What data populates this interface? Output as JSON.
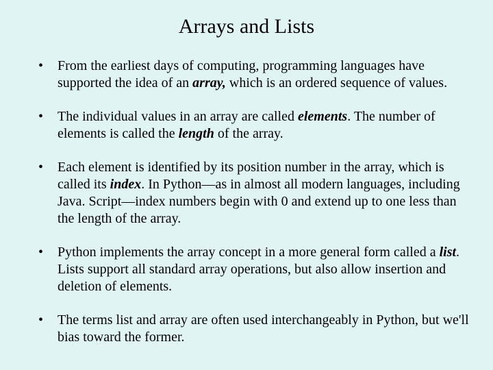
{
  "slide": {
    "background_color": "#e0f4f4",
    "text_color": "#000000",
    "font_family": "Times New Roman",
    "title": "Arrays and Lists",
    "title_fontsize": 30,
    "body_fontsize": 20,
    "bullets": [
      {
        "segments": [
          {
            "text": "From the earliest days of computing, programming languages have supported the idea of an ",
            "style": "normal"
          },
          {
            "text": "array,",
            "style": "bold-italic"
          },
          {
            "text": " which is an ordered sequence of values.",
            "style": "normal"
          }
        ]
      },
      {
        "segments": [
          {
            "text": "The individual values in an array are called ",
            "style": "normal"
          },
          {
            "text": "elements",
            "style": "bold-italic"
          },
          {
            "text": ".  The number of elements is called the ",
            "style": "normal"
          },
          {
            "text": "length",
            "style": "bold-italic"
          },
          {
            "text": " of the array.",
            "style": "normal"
          }
        ]
      },
      {
        "segments": [
          {
            "text": "Each element is identified by its position number in the array, which is called its ",
            "style": "normal"
          },
          {
            "text": "index",
            "style": "bold-italic"
          },
          {
            "text": ".  In Python—as in almost all modern languages, including Java. Script—index numbers begin with 0 and extend up to one less than the length of the array.",
            "style": "normal"
          }
        ]
      },
      {
        "segments": [
          {
            "text": "Python implements the array concept in a more general form called a ",
            "style": "normal"
          },
          {
            "text": "list",
            "style": "bold-italic"
          },
          {
            "text": ".  Lists support all standard array operations, but also allow insertion and deletion of elements.",
            "style": "normal"
          }
        ]
      },
      {
        "segments": [
          {
            "text": "The terms list and array are often used interchangeably in Python, but we'll bias toward the former.",
            "style": "normal"
          }
        ]
      }
    ]
  }
}
